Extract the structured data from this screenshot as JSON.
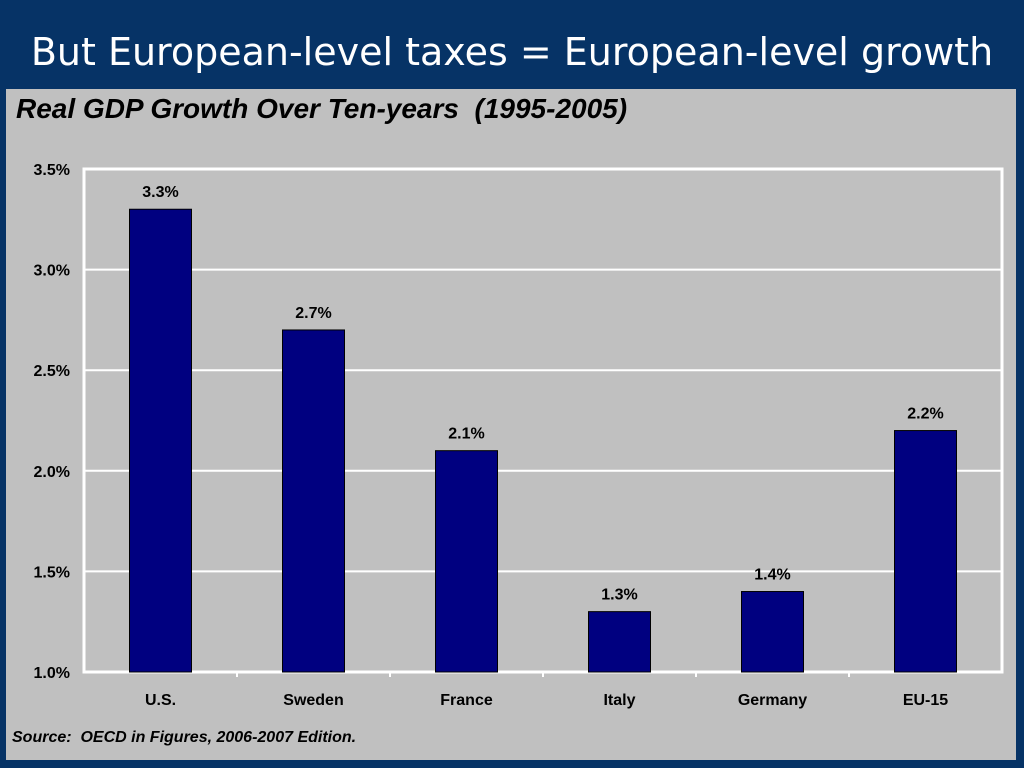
{
  "slide": {
    "title": "But European-level taxes = European-level growth"
  },
  "colors": {
    "background": "#063366",
    "panel": "#c0c0c0",
    "bar": "#000080",
    "grid": "#ffffff"
  },
  "chart_data": {
    "type": "bar",
    "title": "Real GDP Growth Over Ten-years  (1995-2005)",
    "source": "Source:  OECD in Figures, 2006-2007 Edition.",
    "categories": [
      "U.S.",
      "Sweden",
      "France",
      "Italy",
      "Germany",
      "EU-15"
    ],
    "values": [
      3.3,
      2.7,
      2.1,
      1.3,
      1.4,
      2.2
    ],
    "data_labels": [
      "3.3%",
      "2.7%",
      "2.1%",
      "1.3%",
      "1.4%",
      "2.2%"
    ],
    "ylim": [
      1.0,
      3.5
    ],
    "yticks": [
      1.0,
      1.5,
      2.0,
      2.5,
      3.0,
      3.5
    ],
    "ytick_labels": [
      "1.0%",
      "1.5%",
      "2.0%",
      "2.5%",
      "3.0%",
      "3.5%"
    ],
    "grid": true,
    "legend": "none"
  }
}
